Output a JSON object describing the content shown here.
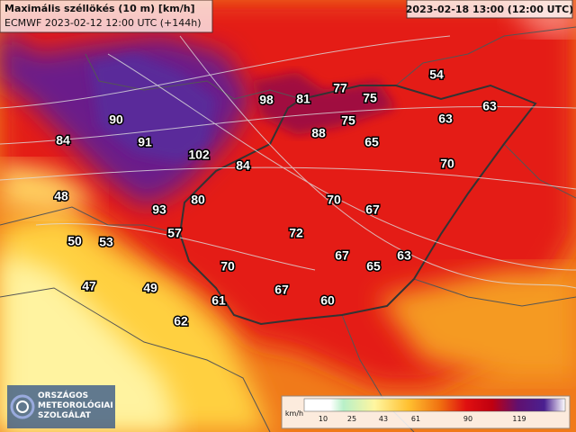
{
  "header": {
    "title": "Maximális széllökés (10 m) [km/h]",
    "subtitle": "ECMWF 2023-02-12 12:00 UTC (+144h)",
    "valid_time": "2023-02-18 13:00 (12:00 UTC)"
  },
  "map": {
    "labels": [
      54,
      77,
      81,
      75,
      98,
      63,
      63,
      90,
      75,
      88,
      84,
      91,
      65,
      102,
      84,
      70,
      48,
      80,
      70,
      93,
      67,
      57,
      72,
      50,
      53,
      63,
      67,
      65,
      70,
      47,
      49,
      67,
      61,
      60,
      62
    ]
  },
  "legend": {
    "unit": "km/h",
    "ticks": [
      10,
      25,
      43,
      61,
      90,
      119
    ]
  },
  "logo": {
    "lines": [
      "ORSZÁGOS",
      "METEOROLÓGIAI",
      "SZOLGÁLAT"
    ]
  }
}
